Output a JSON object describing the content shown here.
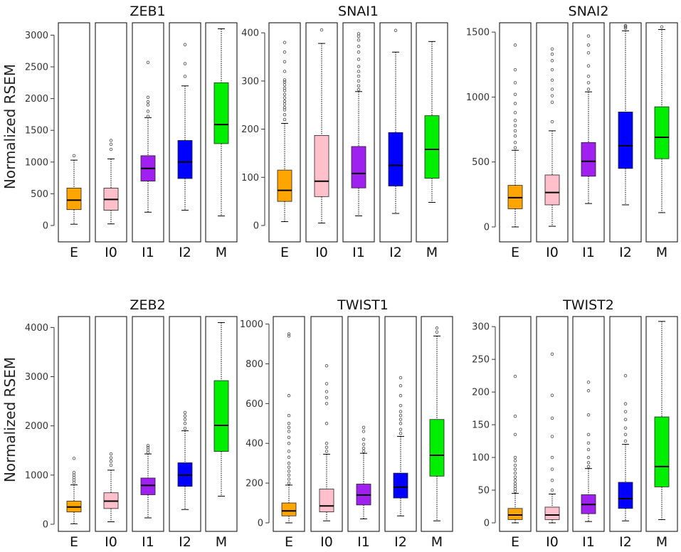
{
  "y_axis_label": "Normalized RSEM",
  "colors": {
    "E": "#ffa500",
    "I0": "#ffc0cb",
    "I1": "#a020f0",
    "I2": "#0000ff",
    "M": "#00ee00",
    "frame": "#000000",
    "whisker": "#000000",
    "outlier": "#555555"
  },
  "chart_data": [
    {
      "type": "box",
      "title": "ZEB1",
      "categories": [
        "E",
        "I0",
        "I1",
        "I2",
        "M"
      ],
      "ylim": [
        0,
        3150
      ],
      "yticks": [
        0,
        500,
        1000,
        1500,
        2000,
        2500,
        3000
      ],
      "boxes": [
        {
          "min": 20,
          "q1": 250,
          "median": 400,
          "q3": 590,
          "max": 1030,
          "outliers": [
            1100
          ]
        },
        {
          "min": 25,
          "q1": 240,
          "median": 410,
          "q3": 590,
          "max": 1050,
          "outliers": [
            1200,
            1280,
            1340
          ]
        },
        {
          "min": 210,
          "q1": 700,
          "median": 900,
          "q3": 1100,
          "max": 1700,
          "outliers": [
            1720,
            1800,
            1900,
            1950,
            2020,
            2570
          ]
        },
        {
          "min": 240,
          "q1": 740,
          "median": 1000,
          "q3": 1340,
          "max": 2200,
          "outliers": [
            2350,
            2550,
            2850
          ]
        },
        {
          "min": 150,
          "q1": 1290,
          "median": 1590,
          "q3": 2250,
          "max": 3100,
          "outliers": []
        }
      ]
    },
    {
      "type": "box",
      "title": "SNAI1",
      "categories": [
        "E",
        "I0",
        "I1",
        "I2",
        "M"
      ],
      "ylim": [
        0,
        415
      ],
      "yticks": [
        0,
        100,
        200,
        300,
        400
      ],
      "boxes": [
        {
          "min": 8,
          "q1": 50,
          "median": 73,
          "q3": 115,
          "max": 212,
          "outliers": [
            220,
            230,
            240,
            245,
            252,
            258,
            265,
            272,
            280,
            285,
            292,
            298,
            302,
            320,
            340,
            360,
            380
          ]
        },
        {
          "min": 5,
          "q1": 60,
          "median": 92,
          "q3": 187,
          "max": 378,
          "outliers": [
            406
          ]
        },
        {
          "min": 20,
          "q1": 78,
          "median": 108,
          "q3": 164,
          "max": 278,
          "outliers": [
            282,
            290,
            300,
            310,
            320,
            330,
            345,
            360,
            372,
            385,
            393,
            398
          ]
        },
        {
          "min": 25,
          "q1": 82,
          "median": 125,
          "q3": 193,
          "max": 360,
          "outliers": [
            405
          ]
        },
        {
          "min": 48,
          "q1": 98,
          "median": 158,
          "q3": 228,
          "max": 382,
          "outliers": []
        }
      ]
    },
    {
      "type": "box",
      "title": "SNAI2",
      "categories": [
        "E",
        "I0",
        "I1",
        "I2",
        "M"
      ],
      "ylim": [
        0,
        1550
      ],
      "yticks": [
        0,
        500,
        1000,
        1500
      ],
      "boxes": [
        {
          "min": 0,
          "q1": 140,
          "median": 225,
          "q3": 320,
          "max": 590,
          "outliers": [
            610,
            650,
            700,
            740,
            780,
            820,
            880,
            950,
            1020,
            1110,
            1210,
            1400
          ]
        },
        {
          "min": 5,
          "q1": 170,
          "median": 265,
          "q3": 400,
          "max": 740,
          "outliers": [
            810,
            960,
            1010,
            1060,
            1130,
            1210,
            1280,
            1330,
            1370
          ]
        },
        {
          "min": 180,
          "q1": 390,
          "median": 505,
          "q3": 650,
          "max": 1040,
          "outliers": [
            1060,
            1110,
            1160,
            1240,
            1340,
            1400,
            1470
          ]
        },
        {
          "min": 170,
          "q1": 450,
          "median": 625,
          "q3": 885,
          "max": 1510,
          "outliers": [
            1530,
            1540,
            1548,
            1550
          ]
        },
        {
          "min": 110,
          "q1": 525,
          "median": 690,
          "q3": 925,
          "max": 1520,
          "outliers": [
            1540
          ]
        }
      ]
    },
    {
      "type": "box",
      "title": "ZEB2",
      "categories": [
        "E",
        "I0",
        "I1",
        "I2",
        "M"
      ],
      "ylim": [
        0,
        4150
      ],
      "yticks": [
        0,
        1000,
        2000,
        3000,
        4000
      ],
      "boxes": [
        {
          "min": 10,
          "q1": 250,
          "median": 350,
          "q3": 470,
          "max": 800,
          "outliers": [
            850,
            900,
            950,
            1000,
            1050,
            1340
          ]
        },
        {
          "min": 50,
          "q1": 320,
          "median": 470,
          "q3": 640,
          "max": 1100,
          "outliers": [
            1200,
            1280,
            1350,
            1430
          ]
        },
        {
          "min": 130,
          "q1": 600,
          "median": 790,
          "q3": 940,
          "max": 1430,
          "outliers": [
            1460,
            1510,
            1560,
            1600
          ]
        },
        {
          "min": 300,
          "q1": 770,
          "median": 1000,
          "q3": 1250,
          "max": 1900,
          "outliers": [
            1950,
            2050,
            2130,
            2200,
            2270
          ]
        },
        {
          "min": 570,
          "q1": 1480,
          "median": 2010,
          "q3": 2920,
          "max": 4100,
          "outliers": []
        }
      ]
    },
    {
      "type": "box",
      "title": "TWIST1",
      "categories": [
        "E",
        "I0",
        "I1",
        "I2",
        "M"
      ],
      "ylim": [
        0,
        1020
      ],
      "yticks": [
        0,
        200,
        400,
        600,
        800,
        1000
      ],
      "boxes": [
        {
          "min": 0,
          "q1": 35,
          "median": 60,
          "q3": 100,
          "max": 190,
          "outliers": [
            200,
            220,
            240,
            260,
            280,
            300,
            330,
            360,
            400,
            430,
            460,
            480,
            500,
            540,
            640,
            940,
            950
          ]
        },
        {
          "min": 10,
          "q1": 55,
          "median": 85,
          "q3": 170,
          "max": 345,
          "outliers": [
            360,
            380,
            400,
            500,
            600,
            630,
            660,
            700,
            790
          ]
        },
        {
          "min": 20,
          "q1": 90,
          "median": 140,
          "q3": 195,
          "max": 350,
          "outliers": [
            360,
            375,
            395,
            420,
            460,
            480
          ]
        },
        {
          "min": 35,
          "q1": 125,
          "median": 180,
          "q3": 250,
          "max": 435,
          "outliers": [
            450,
            470,
            500,
            520,
            540,
            560,
            590,
            640,
            690,
            730
          ]
        },
        {
          "min": 10,
          "q1": 235,
          "median": 340,
          "q3": 520,
          "max": 940,
          "outliers": [
            960,
            980
          ]
        }
      ]
    },
    {
      "type": "box",
      "title": "TWIST2",
      "categories": [
        "E",
        "I0",
        "I1",
        "I2",
        "M"
      ],
      "ylim": [
        0,
        310
      ],
      "yticks": [
        0,
        50,
        100,
        150,
        200,
        250,
        300
      ],
      "boxes": [
        {
          "min": 0,
          "q1": 5,
          "median": 12,
          "q3": 22,
          "max": 45,
          "outliers": [
            48,
            52,
            56,
            60,
            65,
            70,
            76,
            82,
            88,
            95,
            100,
            135,
            163,
            224
          ]
        },
        {
          "min": 0,
          "q1": 5,
          "median": 12,
          "q3": 24,
          "max": 44,
          "outliers": [
            50,
            65,
            82,
            100,
            132,
            160,
            195,
            258
          ]
        },
        {
          "min": 2,
          "q1": 14,
          "median": 28,
          "q3": 43,
          "max": 83,
          "outliers": [
            86,
            92,
            100,
            112,
            122,
            135,
            165,
            202,
            215
          ]
        },
        {
          "min": 3,
          "q1": 22,
          "median": 37,
          "q3": 62,
          "max": 120,
          "outliers": [
            125,
            135,
            145,
            158,
            170,
            182,
            225
          ]
        },
        {
          "min": 5,
          "q1": 55,
          "median": 86,
          "q3": 162,
          "max": 308,
          "outliers": []
        }
      ]
    }
  ]
}
